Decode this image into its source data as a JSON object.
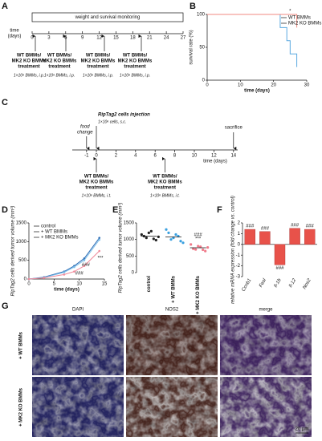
{
  "panel_labels": [
    "A",
    "B",
    "C",
    "D",
    "E",
    "F",
    "G"
  ],
  "panel_a": {
    "banner": "weight and survival monitoring",
    "axis_label": [
      "time",
      "(days)"
    ],
    "ticks": [
      0,
      3,
      6,
      9,
      12,
      15,
      18,
      21,
      24,
      27
    ],
    "treatments": [
      {
        "lines": [
          "WT BMMs/",
          "MK2 KO BMMs",
          "treatment"
        ],
        "dose": "1×10⁶ BMMs, i.p."
      },
      {
        "lines": [
          "WT BMMs/",
          "MK2 KO BMMs",
          "treatment"
        ],
        "dose": "1×10⁶ BMMs, i.p."
      },
      {
        "lines": [
          "WT BMMs/",
          "MK2 KO BMMs",
          "treatment"
        ],
        "dose": "1×10⁶ BMMs, i.p."
      },
      {
        "lines": [
          "WT BMMs/",
          "MK2 KO BMMs",
          "treatment"
        ],
        "dose": "1×10⁶ BMMs, i.p."
      }
    ]
  },
  "panel_c": {
    "title": "RipTag2 cells injection",
    "cells": "1×10⁶ cells, s.c.",
    "food": [
      "food",
      "change"
    ],
    "sacrifice": "sacrifice",
    "axis_label": "time (days)",
    "ticks": [
      -1,
      0,
      2,
      4,
      6,
      8,
      10,
      12,
      14
    ],
    "treatments": [
      {
        "lines": [
          "WT BMMs/",
          "MK2 KO BMMs",
          "treatment"
        ],
        "dose": "1×10⁶ BMMs, i.t."
      },
      {
        "lines": [
          "WT BMMs/",
          "MK2 KO BMMs",
          "treatment"
        ],
        "dose": "1×10⁶ BMMs, i.t."
      }
    ]
  },
  "panel_g": {
    "columns": [
      "DAPI",
      "NOS2",
      "merge"
    ],
    "rows": [
      "+ WT BMMs",
      "+ MK2 KO BMMs"
    ],
    "scale_bar": "20 µm"
  },
  "chart_data": [
    {
      "type": "step",
      "ylabel": "survival rate (%)",
      "xlabel": "time (days)",
      "xlim": [
        0,
        30
      ],
      "xticks": [
        0,
        10,
        20,
        30
      ],
      "ylim": [
        0,
        100
      ],
      "yticks": [
        0,
        50,
        100
      ],
      "annotation": "*",
      "legend": "upper right",
      "series": [
        {
          "name": "WT BMMs",
          "color": "#5aa9e0",
          "x": [
            0,
            22,
            24,
            25,
            27
          ],
          "values": [
            100,
            80,
            60,
            40,
            20
          ]
        },
        {
          "name": "MK2 KO BMMs",
          "color": "#f08a80",
          "x": [
            0,
            27
          ],
          "values": [
            100,
            80
          ]
        }
      ]
    },
    {
      "type": "line",
      "ylabel": "RipTag2 cells derived tumor volume (mm³)",
      "xlabel": "time (days)",
      "xlim": [
        0,
        15
      ],
      "xticks": [
        0,
        5,
        10,
        15
      ],
      "ylim": [
        0,
        1500
      ],
      "yticks": [
        0,
        500,
        1000,
        1500
      ],
      "annotations": [
        "###",
        "***",
        "###"
      ],
      "legend": "upper left",
      "series": [
        {
          "name": "control",
          "color": "#2f6db5",
          "x": [
            0,
            3,
            7,
            9,
            11,
            14
          ],
          "values": [
            0,
            50,
            200,
            350,
            550,
            1100
          ]
        },
        {
          "name": "+ WT BMMs",
          "color": "#7fc0ea",
          "x": [
            0,
            3,
            7,
            9,
            11,
            14
          ],
          "values": [
            0,
            40,
            180,
            320,
            500,
            1050
          ]
        },
        {
          "name": "+ MK2 KO BMMs",
          "color": "#f08a9a",
          "x": [
            0,
            3,
            7,
            9,
            11,
            14
          ],
          "values": [
            0,
            30,
            120,
            200,
            350,
            750
          ]
        }
      ]
    },
    {
      "type": "dot",
      "ylabel": "RipTag2 cells derived tumor volume (mm³)",
      "categories": [
        "control",
        "+ WT BMMs",
        "+ MK2 KO BMMs"
      ],
      "ylim": [
        0,
        1500
      ],
      "yticks": [
        0,
        500,
        1000,
        1500
      ],
      "colors": [
        "#222222",
        "#3aa0e0",
        "#f07a8a"
      ],
      "values": [
        1100,
        1080,
        750
      ],
      "points": [
        [
          1150,
          1050,
          1250,
          980,
          1100,
          1200,
          1020,
          1080
        ],
        [
          1300,
          1000,
          1150,
          950,
          1200,
          1050,
          1100,
          900
        ],
        [
          850,
          700,
          780,
          650,
          720,
          800,
          690,
          760
        ]
      ],
      "annotations": [
        "###",
        "***"
      ]
    },
    {
      "type": "bar",
      "ylabel": "relative mRNA expression (fold change vs. control)",
      "categories": [
        "Ccnb1",
        "Fasl",
        "Il-1b",
        "Il-12",
        "Nos2"
      ],
      "values": [
        1.4,
        1.2,
        -1.9,
        1.5,
        1.4
      ],
      "color": "#e8524a",
      "ylim": [
        -3,
        2
      ],
      "yticks": [
        -3,
        -2,
        -1,
        0,
        1,
        2
      ],
      "annotations": [
        "###",
        "###",
        "###",
        "###",
        "###"
      ]
    }
  ]
}
